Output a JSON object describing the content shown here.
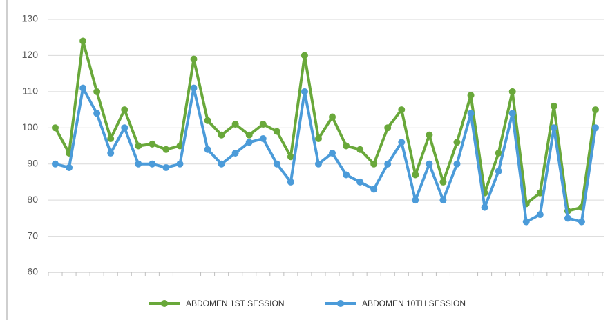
{
  "chart_data": {
    "type": "line",
    "categories": [
      null,
      null,
      null,
      null,
      null,
      null,
      null,
      null,
      null,
      null,
      null,
      null,
      null,
      null,
      null,
      null,
      null,
      null,
      null,
      null,
      null,
      null,
      null,
      null,
      null,
      null,
      null,
      null,
      null,
      null,
      null,
      null,
      null,
      null,
      null,
      null,
      null,
      null,
      null,
      null
    ],
    "series": [
      {
        "name": "ABDOMEN 1ST  SESSION",
        "color": "#69a83a",
        "values": [
          100,
          93,
          124,
          110,
          97,
          105,
          95,
          95.5,
          94,
          95,
          119,
          102,
          98,
          101,
          98,
          101,
          99,
          92,
          120,
          97,
          103,
          95,
          94,
          90,
          100,
          105,
          87,
          98,
          85,
          96,
          109,
          82,
          93,
          110,
          79,
          82,
          106,
          77,
          78,
          105
        ]
      },
      {
        "name": "ABDOMEN 10TH  SESSION",
        "color": "#4b9bd9",
        "values": [
          90,
          89,
          111,
          104,
          93,
          100,
          90,
          90,
          89,
          90,
          111,
          94,
          90,
          93,
          96,
          97,
          90,
          85,
          110,
          90,
          93,
          87,
          85,
          83,
          90,
          96,
          80,
          90,
          80,
          90,
          104,
          78,
          88,
          104,
          74,
          76,
          100,
          75,
          74,
          100
        ]
      }
    ],
    "ylim": [
      60,
      130
    ],
    "yticks": [
      60,
      70,
      80,
      90,
      100,
      110,
      120,
      130
    ],
    "grid": true,
    "legend": "bottom"
  }
}
